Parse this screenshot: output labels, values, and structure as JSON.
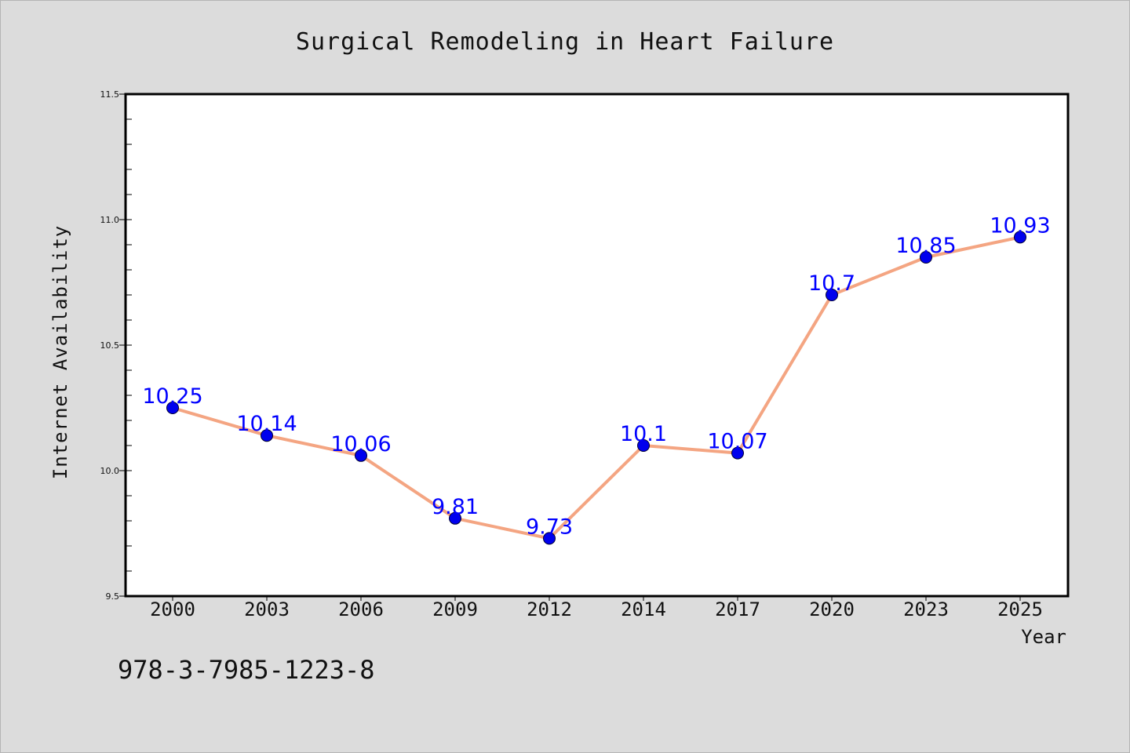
{
  "chart_data": {
    "type": "line",
    "title": "Surgical Remodeling in Heart Failure",
    "xlabel": "Year",
    "ylabel": "Internet Availability",
    "categories": [
      "2000",
      "2003",
      "2006",
      "2009",
      "2012",
      "2014",
      "2017",
      "2020",
      "2023",
      "2025"
    ],
    "series": [
      {
        "values": [
          10.25,
          10.14,
          10.06,
          9.81,
          9.73,
          10.1,
          10.07,
          10.7,
          10.85,
          10.93
        ]
      }
    ],
    "data_labels": [
      "10.25",
      "10.14",
      "10.06",
      "9.81",
      "9.73",
      "10.1",
      "10.07",
      "10.7",
      "10.85",
      "10.93"
    ],
    "ylim": [
      9.5,
      11.5
    ],
    "yticks": [
      "9.5",
      "10.0",
      "10.5",
      "11.0",
      "11.5"
    ],
    "grid": false,
    "colors": {
      "line": "#f4a582",
      "marker": "#0000ee",
      "label": "#0000ff",
      "background": "#dcdcdc",
      "plot_bg": "#ffffff"
    }
  },
  "footer": {
    "isbn": "978-3-7985-1223-8"
  }
}
